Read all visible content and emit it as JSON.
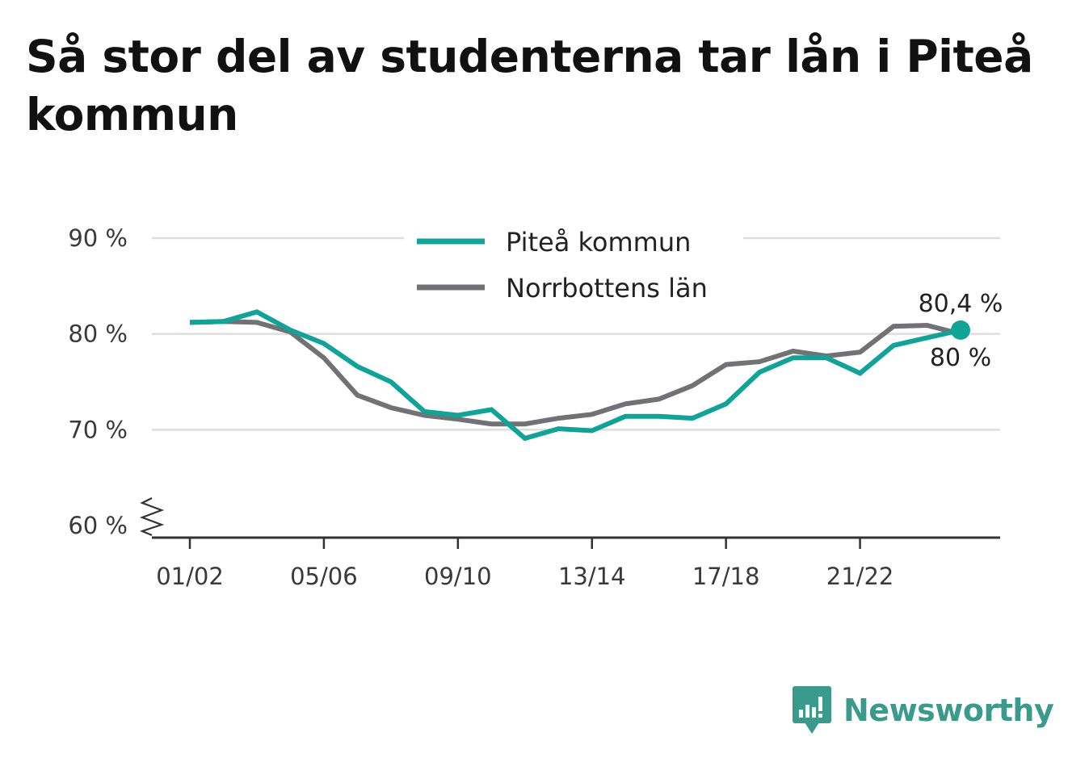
{
  "title": "Så stor del av studenterna tar lån i Piteå kommun",
  "brand": {
    "name": "Newsworthy",
    "icon": "newsworthy-logo-icon"
  },
  "colors": {
    "pitea": "#12a398",
    "norrbotten": "#727176",
    "grid": "#dedede",
    "axis": "#333333",
    "brand": "#3a9a8c"
  },
  "chart_data": {
    "type": "line",
    "title": "Så stor del av studenterna tar lån i Piteå kommun",
    "xlabel": "",
    "ylabel": "",
    "x": [
      "01/02",
      "02/03",
      "03/04",
      "04/05",
      "05/06",
      "06/07",
      "07/08",
      "08/09",
      "09/10",
      "10/11",
      "11/12",
      "12/13",
      "13/14",
      "14/15",
      "15/16",
      "16/17",
      "17/18",
      "18/19",
      "19/20",
      "20/21",
      "21/22",
      "22/23",
      "23/24",
      "24/25"
    ],
    "x_tick_labels": [
      "01/02",
      "05/06",
      "09/10",
      "13/14",
      "17/18",
      "21/22"
    ],
    "y_ticks": [
      60,
      70,
      80,
      90
    ],
    "y_tick_labels": [
      "60 %",
      "70 %",
      "80 %",
      "90 %"
    ],
    "ylim": [
      60,
      90
    ],
    "y_axis_break": true,
    "grid": true,
    "legend_position": "top-center",
    "series": [
      {
        "name": "Piteå kommun",
        "color": "#12a398",
        "values": [
          81.2,
          81.3,
          82.3,
          80.4,
          79.0,
          76.6,
          75.0,
          71.9,
          71.5,
          72.1,
          69.1,
          70.1,
          69.9,
          71.4,
          71.4,
          71.2,
          72.7,
          76.0,
          77.5,
          77.5,
          75.9,
          78.8,
          79.6,
          80.4
        ],
        "end_label": "80,4 %",
        "end_marker": true
      },
      {
        "name": "Norrbottens län",
        "color": "#727176",
        "values": [
          81.2,
          81.3,
          81.2,
          80.2,
          77.5,
          73.6,
          72.3,
          71.5,
          71.1,
          70.6,
          70.6,
          71.2,
          71.6,
          72.7,
          73.2,
          74.6,
          76.8,
          77.1,
          78.2,
          77.7,
          78.1,
          80.8,
          80.9,
          80.0
        ],
        "end_label": "80 %"
      }
    ]
  }
}
